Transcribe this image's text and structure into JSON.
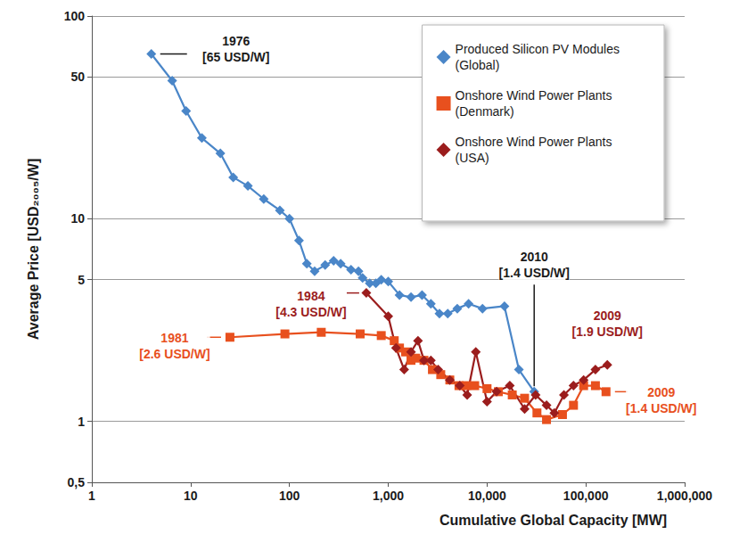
{
  "chart_data": {
    "type": "line",
    "x_label": "Cumulative Global Capacity [MW]",
    "y_label": "Average Price [USD₂₀₀₅/W]",
    "log": true,
    "grid": true,
    "legend": "top-right",
    "xlim": [
      1,
      1000000
    ],
    "xticks": [
      1,
      10,
      100,
      {
        "value": 1000,
        "label": "1,000"
      },
      {
        "value": 10000,
        "label": "10,000"
      },
      {
        "value": 100000,
        "label": "100,000"
      },
      {
        "value": 1000000,
        "label": "1,000,000"
      }
    ],
    "ylim": [
      0.5,
      100
    ],
    "yticks": [
      {
        "value": 0.5,
        "label": "0,5"
      },
      1,
      5,
      10,
      50,
      100
    ],
    "series": [
      {
        "name": "Produced Silicon PV Modules (Global)",
        "color": "#4a86c8",
        "marker": "diamond",
        "x": [
          4,
          6.5,
          9,
          13,
          20,
          27,
          38,
          55,
          80,
          100,
          125,
          150,
          180,
          230,
          280,
          330,
          420,
          500,
          550,
          650,
          750,
          850,
          1000,
          1300,
          1700,
          2200,
          2700,
          3300,
          4000,
          5000,
          6500,
          9000,
          15000,
          21000,
          30000
        ],
        "values": [
          65,
          48,
          34,
          25,
          21,
          16,
          14.5,
          12.5,
          11,
          10,
          7.8,
          6,
          5.5,
          5.9,
          6.2,
          6,
          5.6,
          5.5,
          5.1,
          4.8,
          4.8,
          5.0,
          4.9,
          4.2,
          4.1,
          4.2,
          3.8,
          3.4,
          3.4,
          3.6,
          3.8,
          3.6,
          3.7,
          1.8,
          1.4
        ]
      },
      {
        "name": "Onshore Wind Power Plants (Denmark)",
        "color": "#e8501e",
        "marker": "square",
        "x": [
          25,
          90,
          210,
          520,
          850,
          1150,
          1300,
          1500,
          1700,
          1900,
          2300,
          2800,
          3400,
          4200,
          5200,
          6200,
          7500,
          10000,
          13000,
          18000,
          24000,
          32000,
          40000,
          58000,
          75000,
          95000,
          125000,
          160000
        ],
        "values": [
          2.6,
          2.7,
          2.75,
          2.7,
          2.65,
          2.5,
          2.3,
          2.2,
          2.0,
          2.05,
          2.0,
          1.8,
          1.7,
          1.6,
          1.5,
          1.5,
          1.5,
          1.45,
          1.4,
          1.35,
          1.3,
          1.1,
          1.02,
          1.08,
          1.2,
          1.5,
          1.5,
          1.4
        ]
      },
      {
        "name": "Onshore Wind Power Plants (USA)",
        "color": "#9b1d1d",
        "marker": "diamond",
        "x": [
          600,
          1000,
          1200,
          1450,
          1700,
          2000,
          2300,
          2700,
          3200,
          4200,
          5300,
          6300,
          7700,
          10000,
          12500,
          17000,
          24000,
          31000,
          40000,
          48000,
          60000,
          75000,
          95000,
          125000,
          165000
        ],
        "values": [
          4.3,
          3.3,
          2.3,
          1.8,
          2.2,
          2.5,
          2.0,
          2.0,
          1.8,
          1.6,
          1.5,
          1.35,
          2.2,
          1.25,
          1.4,
          1.5,
          1.15,
          1.35,
          1.2,
          1.1,
          1.35,
          1.5,
          1.6,
          1.8,
          1.9
        ]
      }
    ],
    "annotations": [
      {
        "series": "Produced Silicon PV Modules (Global)",
        "x": 4,
        "y": 65,
        "text": [
          "1976",
          "[65 USD/W]"
        ]
      },
      {
        "series": "Onshore Wind Power Plants (USA)",
        "x": 600,
        "y": 4.3,
        "text": [
          "1984",
          "[4.3 USD/W]"
        ]
      },
      {
        "series": "Onshore Wind Power Plants (Denmark)",
        "x": 25,
        "y": 2.6,
        "text": [
          "1981",
          "[2.6 USD/W]"
        ]
      },
      {
        "series": "Produced Silicon PV Modules (Global)",
        "x": 30000,
        "y": 1.4,
        "text": [
          "2010",
          "[1.4 USD/W]"
        ]
      },
      {
        "series": "Onshore Wind Power Plants (USA)",
        "x": 165000,
        "y": 1.9,
        "text": [
          "2009",
          "[1.9 USD/W]"
        ]
      },
      {
        "series": "Onshore Wind Power Plants (Denmark)",
        "x": 160000,
        "y": 1.4,
        "text": [
          "2009",
          "[1.4 USD/W]"
        ]
      }
    ]
  }
}
